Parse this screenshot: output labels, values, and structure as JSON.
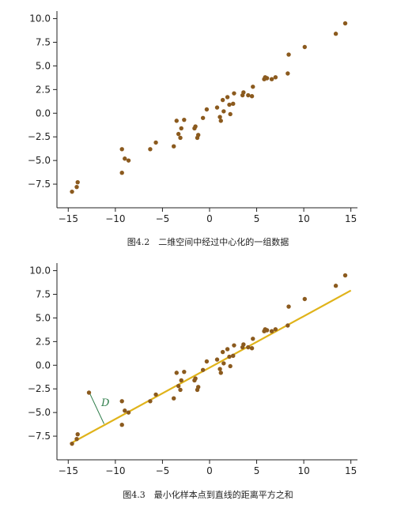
{
  "colors": {
    "point": "#8b5a1e",
    "fit_line": "#e0b31a",
    "distance_segment": "#2e7d4a",
    "axis": "#222222",
    "background": "#ffffff"
  },
  "chart_data": [
    {
      "type": "scatter",
      "caption": "图4.2　二维空间中经过中心化的一组数据",
      "xlim": [
        -16.2,
        15.7
      ],
      "ylim": [
        -10.0,
        10.8
      ],
      "x_ticks": [
        -15,
        -10,
        -5,
        0,
        5,
        10,
        15
      ],
      "y_ticks": [
        10.0,
        7.5,
        5.0,
        2.5,
        0.0,
        -2.5,
        -5.0,
        -7.5
      ],
      "x_tick_labels": [
        "−15",
        "−10",
        "−5",
        "0",
        "5",
        "10",
        "15"
      ],
      "y_tick_labels": [
        "10.0",
        "7.5",
        "5.0",
        "2.5",
        "0.0",
        "−2.5",
        "−5.0",
        "−7.5"
      ],
      "grid": false,
      "points": [
        [
          -14.6,
          -8.3
        ],
        [
          -14.1,
          -7.8
        ],
        [
          -14.0,
          -7.3
        ],
        [
          -9.3,
          -3.8
        ],
        [
          -9.0,
          -4.8
        ],
        [
          -9.3,
          -6.3
        ],
        [
          -8.6,
          -5.0
        ],
        [
          -6.3,
          -3.8
        ],
        [
          -5.7,
          -3.1
        ],
        [
          -3.8,
          -3.5
        ],
        [
          -3.5,
          -0.8
        ],
        [
          -3.3,
          -2.2
        ],
        [
          -3.1,
          -2.6
        ],
        [
          -3.0,
          -1.6
        ],
        [
          -2.7,
          -0.7
        ],
        [
          -1.6,
          -1.6
        ],
        [
          -1.5,
          -1.4
        ],
        [
          -1.2,
          -2.3
        ],
        [
          -1.3,
          -2.6
        ],
        [
          -0.7,
          -0.5
        ],
        [
          -0.3,
          0.4
        ],
        [
          0.8,
          0.6
        ],
        [
          1.1,
          -0.4
        ],
        [
          1.2,
          -0.8
        ],
        [
          1.4,
          1.4
        ],
        [
          1.5,
          0.2
        ],
        [
          1.9,
          1.7
        ],
        [
          2.1,
          0.9
        ],
        [
          2.2,
          -0.1
        ],
        [
          2.5,
          1.0
        ],
        [
          2.6,
          2.1
        ],
        [
          3.5,
          1.9
        ],
        [
          3.6,
          2.2
        ],
        [
          4.1,
          1.9
        ],
        [
          4.5,
          1.8
        ],
        [
          4.6,
          2.8
        ],
        [
          5.8,
          3.6
        ],
        [
          5.9,
          3.8
        ],
        [
          6.1,
          3.7
        ],
        [
          6.6,
          3.6
        ],
        [
          7.0,
          3.8
        ],
        [
          8.3,
          4.2
        ],
        [
          8.4,
          6.2
        ],
        [
          10.1,
          7.0
        ],
        [
          13.4,
          8.4
        ],
        [
          14.4,
          9.5
        ]
      ]
    },
    {
      "type": "scatter",
      "caption": "图4.3　最小化样本点到直线的距离平方之和",
      "xlim": [
        -16.2,
        15.7
      ],
      "ylim": [
        -10.0,
        10.8
      ],
      "x_ticks": [
        -15,
        -10,
        -5,
        0,
        5,
        10,
        15
      ],
      "y_ticks": [
        10.0,
        7.5,
        5.0,
        2.5,
        0.0,
        -2.5,
        -5.0,
        -7.5
      ],
      "x_tick_labels": [
        "−15",
        "−10",
        "−5",
        "0",
        "5",
        "10",
        "15"
      ],
      "y_tick_labels": [
        "10.0",
        "7.5",
        "5.0",
        "2.5",
        "0.0",
        "−2.5",
        "−5.0",
        "−7.5"
      ],
      "grid": false,
      "fit_line": {
        "x": [
          -14.8,
          15.0
        ],
        "y": [
          -8.3,
          7.9
        ]
      },
      "annotation": {
        "label": "D",
        "from": [
          -12.8,
          -2.8
        ],
        "to": [
          -11.2,
          -6.2
        ]
      },
      "points": [
        [
          -14.6,
          -8.3
        ],
        [
          -14.1,
          -7.8
        ],
        [
          -14.0,
          -7.3
        ],
        [
          -12.8,
          -2.9
        ],
        [
          -9.3,
          -3.8
        ],
        [
          -9.0,
          -4.8
        ],
        [
          -9.3,
          -6.3
        ],
        [
          -8.6,
          -5.0
        ],
        [
          -6.3,
          -3.8
        ],
        [
          -5.7,
          -3.1
        ],
        [
          -3.8,
          -3.5
        ],
        [
          -3.5,
          -0.8
        ],
        [
          -3.3,
          -2.2
        ],
        [
          -3.1,
          -2.6
        ],
        [
          -3.0,
          -1.6
        ],
        [
          -2.7,
          -0.7
        ],
        [
          -1.6,
          -1.6
        ],
        [
          -1.5,
          -1.4
        ],
        [
          -1.2,
          -2.3
        ],
        [
          -1.3,
          -2.6
        ],
        [
          -0.7,
          -0.5
        ],
        [
          -0.3,
          0.4
        ],
        [
          0.8,
          0.6
        ],
        [
          1.1,
          -0.4
        ],
        [
          1.2,
          -0.8
        ],
        [
          1.4,
          1.4
        ],
        [
          1.5,
          0.2
        ],
        [
          1.9,
          1.7
        ],
        [
          2.1,
          0.9
        ],
        [
          2.2,
          -0.1
        ],
        [
          2.5,
          1.0
        ],
        [
          2.6,
          2.1
        ],
        [
          3.5,
          1.9
        ],
        [
          3.6,
          2.2
        ],
        [
          4.1,
          1.9
        ],
        [
          4.5,
          1.8
        ],
        [
          4.6,
          2.8
        ],
        [
          5.8,
          3.6
        ],
        [
          5.9,
          3.8
        ],
        [
          6.1,
          3.7
        ],
        [
          6.6,
          3.6
        ],
        [
          7.0,
          3.8
        ],
        [
          8.3,
          4.2
        ],
        [
          8.4,
          6.2
        ],
        [
          10.1,
          7.0
        ],
        [
          13.4,
          8.4
        ],
        [
          14.4,
          9.5
        ]
      ]
    }
  ]
}
